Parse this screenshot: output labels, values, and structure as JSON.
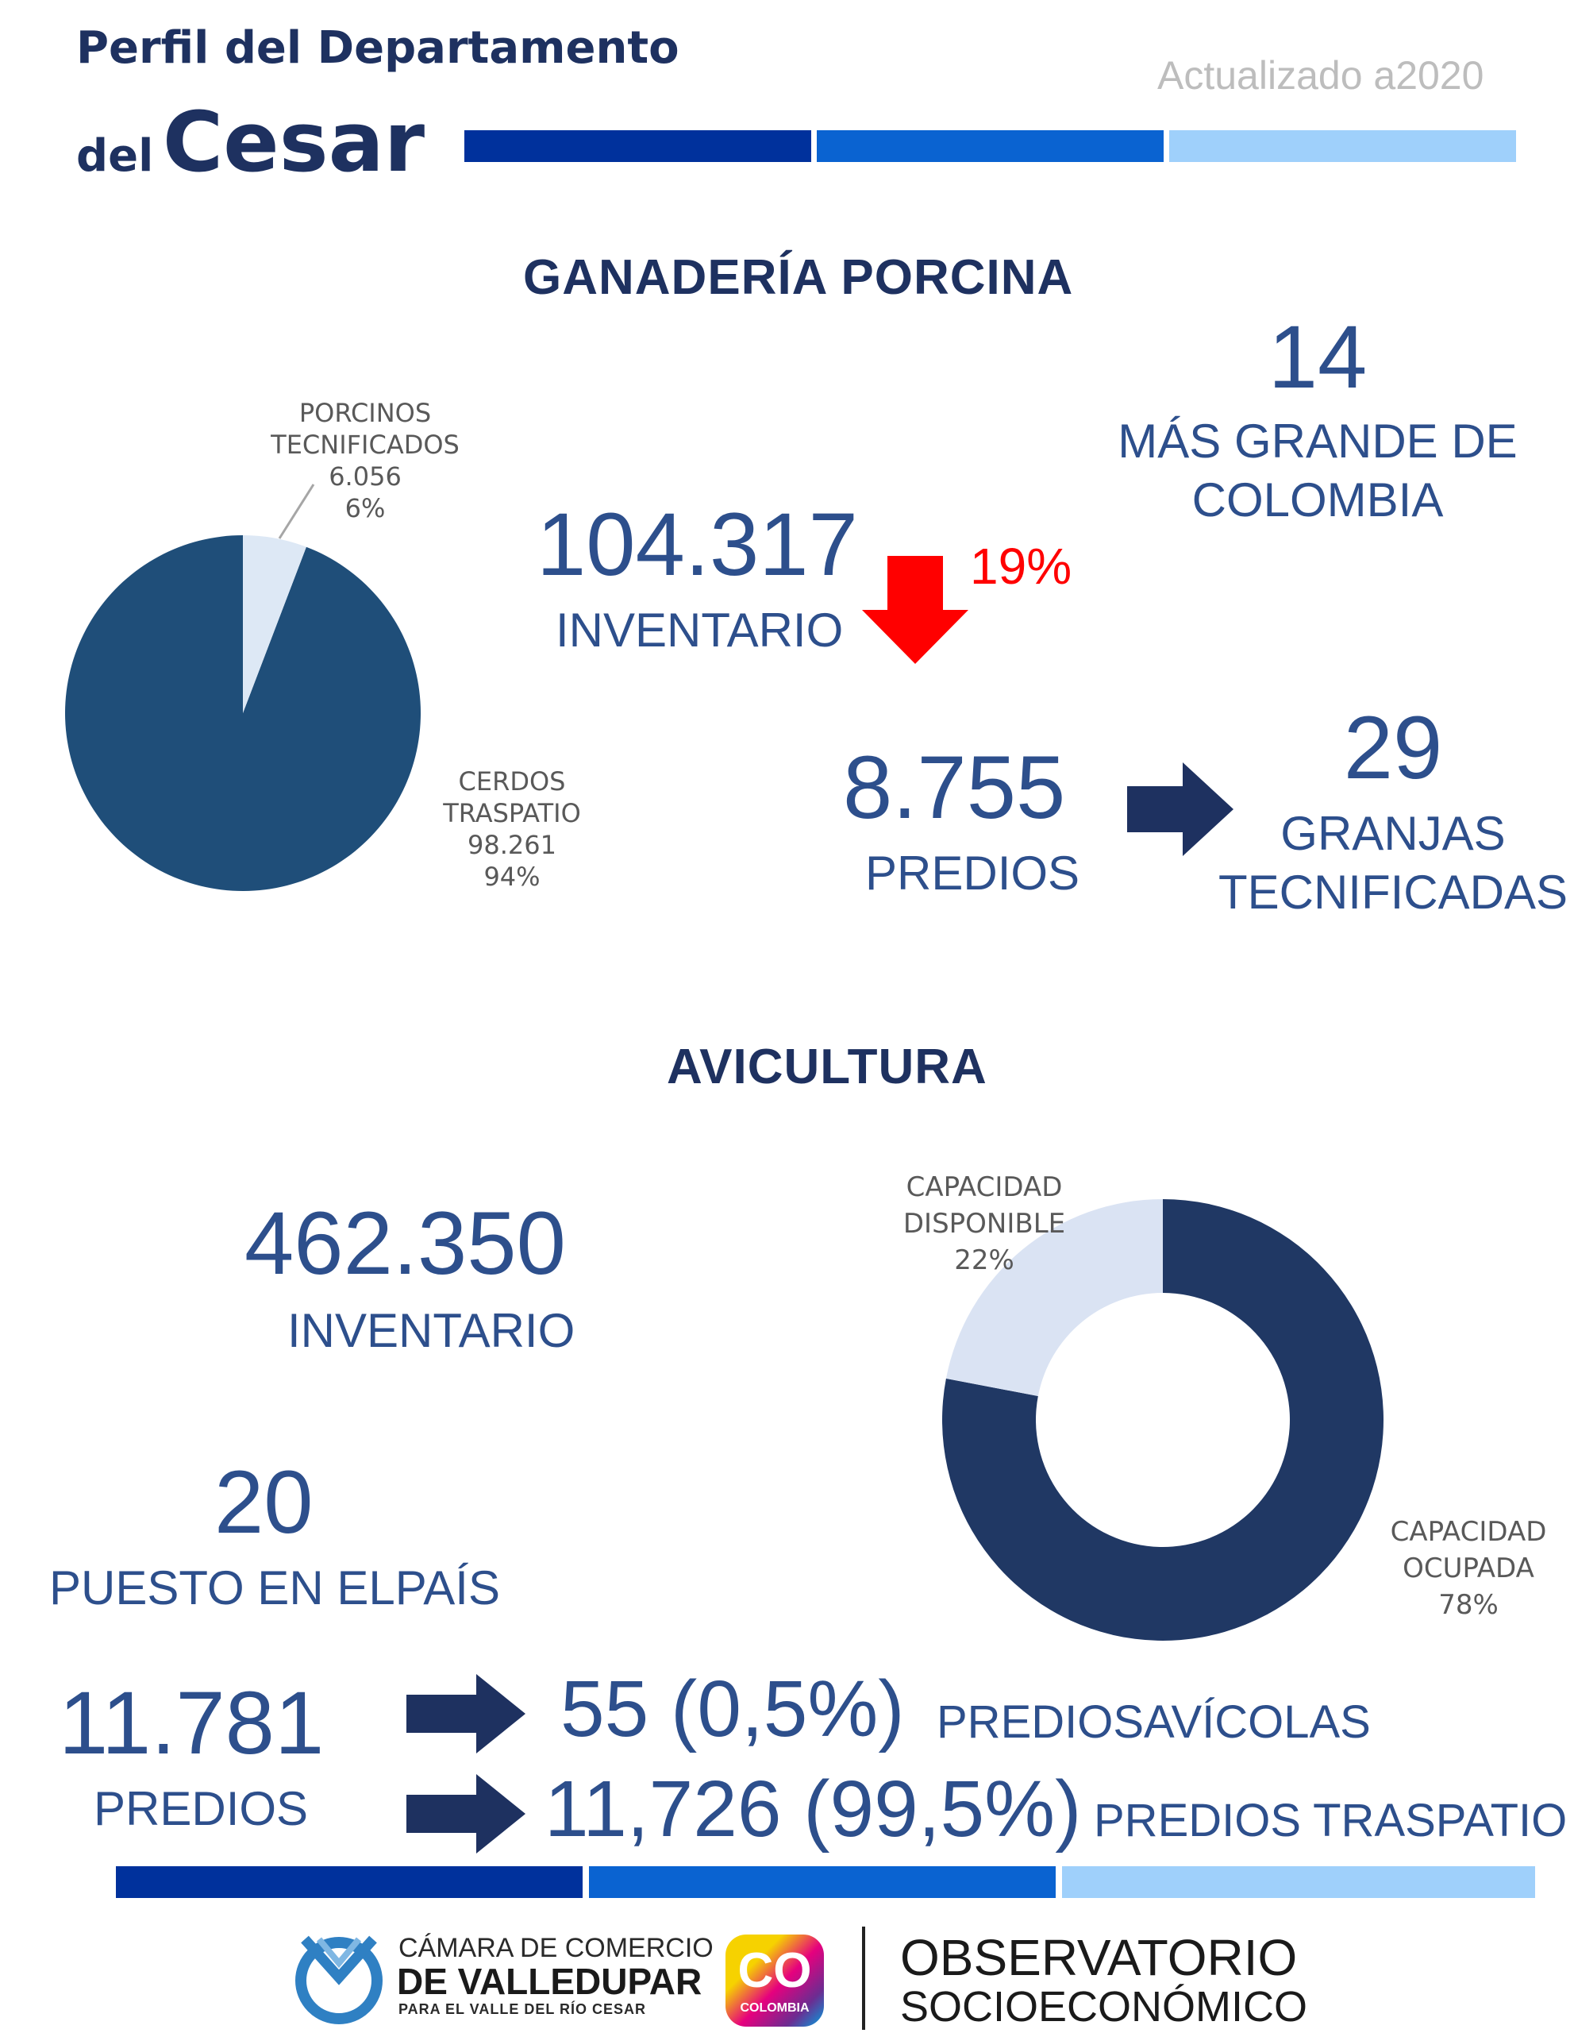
{
  "header": {
    "title_line1": "Perfil del Departamento",
    "title_line2_small": "del",
    "title_line2_big": "Cesar",
    "updated": "Actualizado a2020",
    "bar_colors": [
      "#00319c",
      "#0a63d1",
      "#9fd0fb"
    ]
  },
  "porcina": {
    "section_title": "GANADERÍA PORCINA",
    "inventory_value": "104.317",
    "inventory_label": "INVENTARIO",
    "change_percent": "19%",
    "change_direction": "down",
    "change_color": "#ff0000",
    "rank_value": "14",
    "rank_label_line1": "MÁS GRANDE DE",
    "rank_label_line2": "COLOMBIA",
    "predios_value": "8.755",
    "predios_label": "PREDIOS",
    "farms_value": "29",
    "farms_label_line1": "GRANJAS",
    "farms_label_line2": "TECNIFICADAS"
  },
  "avicultura": {
    "section_title": "AVICULTURA",
    "inventory_value": "462.350",
    "inventory_label": "INVENTARIO",
    "rank_value": "20",
    "rank_label": "PUESTO EN ELPAÍS",
    "predios_value": "11.781",
    "predios_label": "PREDIOS",
    "row1_value": "55 (0,5%)",
    "row1_label": "PREDIOSAVÍCOLAS",
    "row2_value": "11,726 (99,5%)",
    "row2_label": "PREDIOS TRASPATIO"
  },
  "chart_data": [
    {
      "type": "pie",
      "slices": [
        {
          "label_line1": "PORCINOS",
          "label_line2": "TECNIFICADOS",
          "value_text": "6.056",
          "percent_text": "6%",
          "value": 6056,
          "percent": 6,
          "color": "#dde8f5"
        },
        {
          "label_line1": "CERDOS",
          "label_line2": "TRASPATIO",
          "value_text": "98.261",
          "percent_text": "94%",
          "value": 98261,
          "percent": 94,
          "color": "#1f4e79"
        }
      ]
    },
    {
      "type": "pie",
      "style": "donut",
      "slices": [
        {
          "label_line1": "CAPACIDAD",
          "label_line2": "OCUPADA",
          "percent_text": "78%",
          "percent": 78,
          "color": "#203864"
        },
        {
          "label_line1": "CAPACIDAD",
          "label_line2": "DISPONIBLE",
          "percent_text": "22%",
          "percent": 22,
          "color": "#dae3f3"
        }
      ]
    }
  ],
  "footer": {
    "camara_line1": "CÁMARA DE COMERCIO",
    "camara_line2": "DE VALLEDUPAR",
    "camara_line3": "PARA EL VALLE DEL RÍO CESAR",
    "co_text": "CO",
    "co_sub": "COLOMBIA",
    "obs_line1": "OBSERVATORIO",
    "obs_line2": "SOCIOECONÓMICO"
  }
}
